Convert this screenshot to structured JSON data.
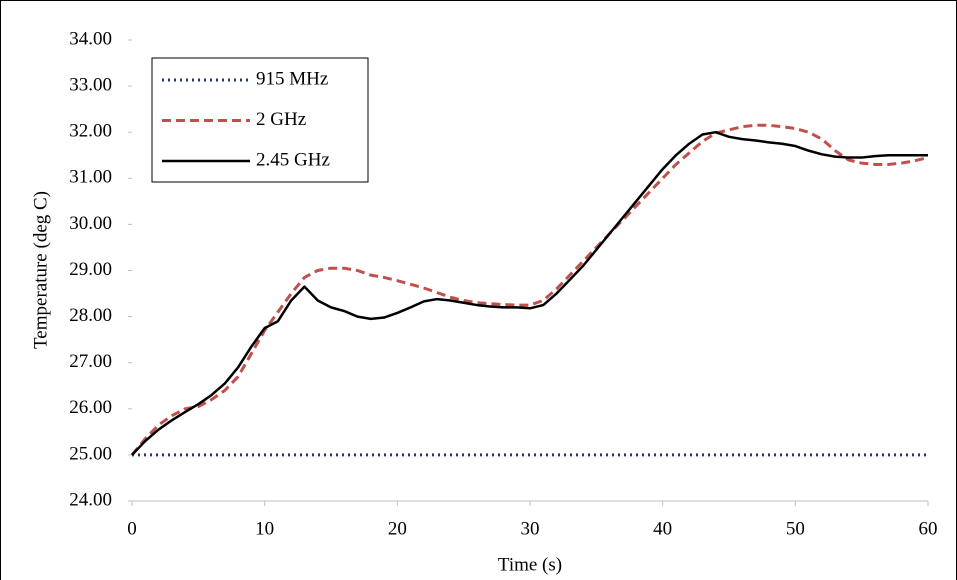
{
  "chart_data": {
    "type": "line",
    "x_label": "Time (s)",
    "y_label": "Temperature (deg C)",
    "x": [
      0,
      1,
      2,
      3,
      4,
      5,
      6,
      7,
      8,
      9,
      10,
      11,
      12,
      13,
      14,
      15,
      16,
      17,
      18,
      19,
      20,
      21,
      22,
      23,
      24,
      25,
      26,
      27,
      28,
      29,
      30,
      31,
      32,
      33,
      34,
      35,
      36,
      37,
      38,
      39,
      40,
      41,
      42,
      43,
      44,
      45,
      46,
      47,
      48,
      49,
      50,
      51,
      52,
      53,
      54,
      55,
      56,
      57,
      58,
      59,
      60
    ],
    "series": [
      {
        "name": "915 MHz",
        "color": "#1f3a7a",
        "style": "dotted",
        "values": [
          25,
          25,
          25,
          25,
          25,
          25,
          25,
          25,
          25,
          25,
          25,
          25,
          25,
          25,
          25,
          25,
          25,
          25,
          25,
          25,
          25,
          25,
          25,
          25,
          25,
          25,
          25,
          25,
          25,
          25,
          25,
          25,
          25,
          25,
          25,
          25,
          25,
          25,
          25,
          25,
          25,
          25,
          25,
          25,
          25,
          25,
          25,
          25,
          25,
          25,
          25,
          25,
          25,
          25,
          25,
          25,
          25,
          25,
          25,
          25,
          25
        ]
      },
      {
        "name": "2 GHz",
        "color": "#c0504d",
        "style": "dashed",
        "values": [
          25.0,
          25.35,
          25.65,
          25.85,
          26.0,
          26.05,
          26.2,
          26.4,
          26.7,
          27.2,
          27.7,
          28.1,
          28.5,
          28.85,
          29.0,
          29.05,
          29.05,
          29.0,
          28.9,
          28.85,
          28.78,
          28.7,
          28.62,
          28.52,
          28.42,
          28.35,
          28.3,
          28.28,
          28.26,
          28.25,
          28.25,
          28.35,
          28.6,
          28.9,
          29.2,
          29.5,
          29.8,
          30.1,
          30.4,
          30.7,
          31.0,
          31.3,
          31.55,
          31.8,
          31.98,
          32.05,
          32.12,
          32.15,
          32.15,
          32.12,
          32.08,
          32.0,
          31.85,
          31.6,
          31.4,
          31.33,
          31.3,
          31.3,
          31.33,
          31.38,
          31.45
        ]
      },
      {
        "name": "2.45 GHz",
        "color": "#000000",
        "style": "solid",
        "values": [
          25.0,
          25.3,
          25.55,
          25.75,
          25.93,
          26.1,
          26.3,
          26.55,
          26.9,
          27.35,
          27.75,
          27.9,
          28.35,
          28.65,
          28.35,
          28.2,
          28.12,
          28.0,
          27.95,
          27.98,
          28.08,
          28.2,
          28.33,
          28.38,
          28.35,
          28.3,
          28.25,
          28.22,
          28.2,
          28.2,
          28.18,
          28.25,
          28.5,
          28.8,
          29.1,
          29.45,
          29.8,
          30.15,
          30.5,
          30.85,
          31.2,
          31.5,
          31.75,
          31.95,
          32.0,
          31.9,
          31.85,
          31.82,
          31.78,
          31.75,
          31.7,
          31.6,
          31.52,
          31.47,
          31.45,
          31.45,
          31.48,
          31.5,
          31.5,
          31.5,
          31.5
        ]
      }
    ],
    "xlim": [
      0,
      60
    ],
    "xticks": [
      0,
      10,
      20,
      30,
      40,
      50,
      60
    ],
    "ylim": [
      24,
      34
    ],
    "yticks": [
      {
        "value": 24,
        "label": "24.00"
      },
      {
        "value": 25,
        "label": "25.00"
      },
      {
        "value": 26,
        "label": "26.00"
      },
      {
        "value": 27,
        "label": "27.00"
      },
      {
        "value": 28,
        "label": "28.00"
      },
      {
        "value": 29,
        "label": "29.00"
      },
      {
        "value": 30,
        "label": "30.00"
      },
      {
        "value": 31,
        "label": "31.00"
      },
      {
        "value": 32,
        "label": "32.00"
      },
      {
        "value": 33,
        "label": "33.00"
      },
      {
        "value": 34,
        "label": "34.00"
      }
    ],
    "grid": false,
    "legend": "upper-left"
  }
}
